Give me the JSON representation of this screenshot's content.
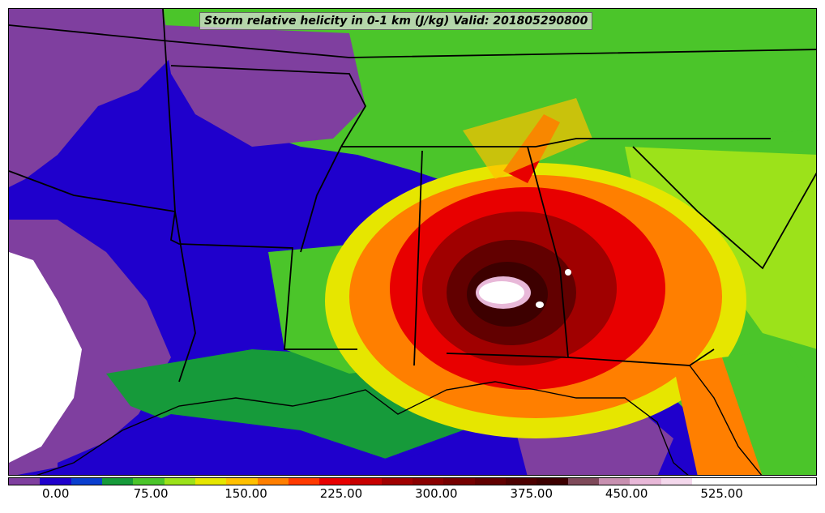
{
  "title": "Storm relative helicity in 0-1 km (J/kg) Valid: 201805290800",
  "colorbar": {
    "min": -37.5,
    "max": 600,
    "step": 25,
    "colors": [
      "#7f3f9f",
      "#1f00cc",
      "#0a3fcf",
      "#169a3a",
      "#4bc52a",
      "#9ce21a",
      "#e6e600",
      "#ffc000",
      "#ff7f00",
      "#ff3a00",
      "#e80000",
      "#c80000",
      "#a00000",
      "#8a0000",
      "#760000",
      "#620000",
      "#4d0000",
      "#3d0000",
      "#7f4a5a",
      "#c890b0",
      "#e8b8d8",
      "#f4d8ec",
      "#ffffff",
      "#ffffff",
      "#ffffff",
      "#ffffff"
    ],
    "ticks": [
      "0.00",
      "75.00",
      "150.00",
      "225.00",
      "300.00",
      "375.00",
      "450.00",
      "525.00"
    ],
    "tick_values": [
      0,
      75,
      150,
      225,
      300,
      375,
      450,
      525
    ]
  },
  "map": {
    "colors": {
      "purple": "#7f3f9f",
      "blue": "#1f00cc",
      "darkgreen": "#169a3a",
      "green": "#4bc52a",
      "lime": "#9ce21a",
      "yellow": "#e6e600",
      "orange": "#ff7f00",
      "red": "#e80000",
      "darkred": "#8a0000",
      "maroon": "#4d0000",
      "pink": "#e8b8d8",
      "white": "#ffffff",
      "gulf_blue": "#1f00cc"
    }
  }
}
